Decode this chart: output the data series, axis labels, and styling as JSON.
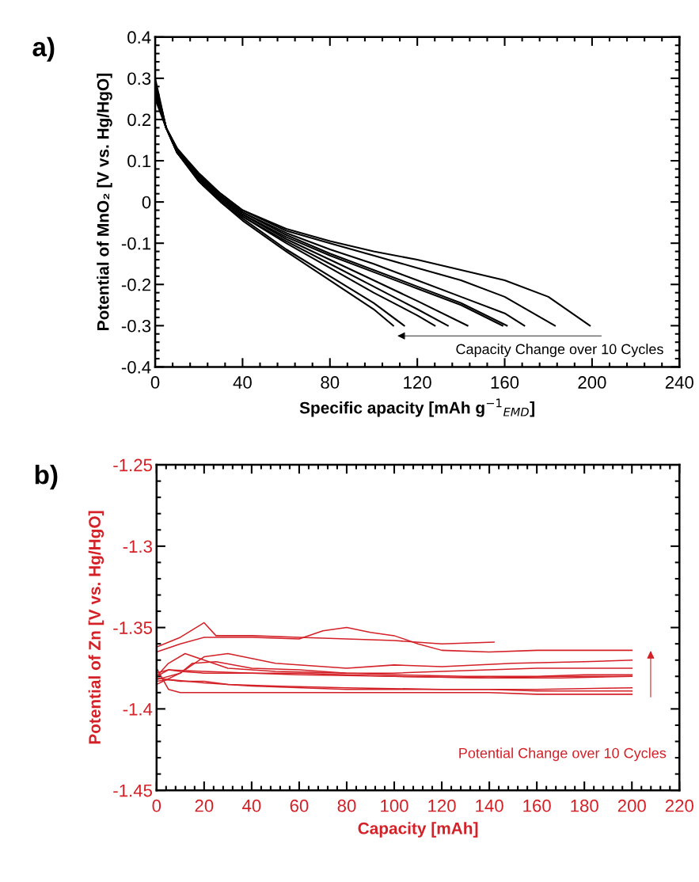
{
  "chart_data": [
    {
      "type": "line",
      "title": "a)",
      "xlabel": "Specific apacity [mAh g$^{−1}$$_{EMD}$]",
      "ylabel": "Potential of MnO₂ [V vs. Hg/HgO]",
      "xlim": [
        0,
        240
      ],
      "xticks": [
        0,
        40,
        80,
        120,
        160,
        200,
        240
      ],
      "ylim": [
        -0.4,
        0.4
      ],
      "yticks": [
        {
          "value": -0.4,
          "label": "-0.4"
        },
        {
          "value": -0.3,
          "label": "-0.3"
        },
        {
          "value": -0.2,
          "label": "-0.2"
        },
        {
          "value": -0.1,
          "label": "-0.1"
        },
        {
          "value": 0,
          "label": "0"
        },
        {
          "value": 0.1,
          "label": "0.1"
        },
        {
          "value": 0.2,
          "label": "0.2"
        },
        {
          "value": 0.3,
          "label": "0.3"
        },
        {
          "value": 0.4,
          "label": "0.4"
        }
      ],
      "grid": false,
      "legend": false,
      "marker": "none",
      "line_style": "solid",
      "annotations": [
        "Capacity Change over 10 Cycles"
      ],
      "series": [
        {
          "color": "#000000",
          "x": [
            0,
            5,
            10,
            20,
            30,
            40,
            60,
            80,
            100,
            109
          ],
          "values": [
            0.3,
            0.18,
            0.12,
            0.05,
            0.0,
            -0.045,
            -0.12,
            -0.19,
            -0.26,
            -0.3
          ]
        },
        {
          "color": "#000000",
          "x": [
            0,
            5,
            10,
            20,
            30,
            40,
            60,
            80,
            100,
            114
          ],
          "values": [
            0.29,
            0.18,
            0.12,
            0.05,
            0.0,
            -0.04,
            -0.115,
            -0.18,
            -0.245,
            -0.3
          ]
        },
        {
          "color": "#000000",
          "x": [
            0,
            5,
            10,
            20,
            30,
            40,
            60,
            80,
            100,
            120,
            128
          ],
          "values": [
            0.29,
            0.18,
            0.12,
            0.055,
            0.005,
            -0.035,
            -0.1,
            -0.16,
            -0.22,
            -0.275,
            -0.3
          ]
        },
        {
          "color": "#000000",
          "x": [
            0,
            5,
            10,
            20,
            30,
            40,
            60,
            80,
            100,
            120,
            134
          ],
          "values": [
            0.28,
            0.18,
            0.12,
            0.055,
            0.005,
            -0.035,
            -0.095,
            -0.15,
            -0.205,
            -0.26,
            -0.3
          ]
        },
        {
          "color": "#000000",
          "x": [
            0,
            5,
            10,
            20,
            30,
            40,
            60,
            80,
            100,
            120,
            143
          ],
          "values": [
            0.28,
            0.18,
            0.125,
            0.06,
            0.01,
            -0.03,
            -0.09,
            -0.14,
            -0.19,
            -0.24,
            -0.3
          ]
        },
        {
          "color": "#000000",
          "x": [
            0,
            5,
            10,
            20,
            30,
            40,
            60,
            80,
            100,
            120,
            140,
            159
          ],
          "values": [
            0.27,
            0.18,
            0.125,
            0.06,
            0.01,
            -0.03,
            -0.085,
            -0.13,
            -0.17,
            -0.21,
            -0.25,
            -0.3
          ]
        },
        {
          "color": "#000000",
          "x": [
            0,
            5,
            10,
            20,
            30,
            40,
            60,
            80,
            100,
            120,
            140,
            161
          ],
          "values": [
            0.27,
            0.18,
            0.125,
            0.06,
            0.015,
            -0.025,
            -0.08,
            -0.125,
            -0.165,
            -0.205,
            -0.245,
            -0.3
          ]
        },
        {
          "color": "#000000",
          "x": [
            0,
            5,
            10,
            20,
            30,
            40,
            60,
            80,
            100,
            120,
            140,
            160,
            169
          ],
          "values": [
            0.26,
            0.18,
            0.13,
            0.065,
            0.015,
            -0.025,
            -0.075,
            -0.115,
            -0.15,
            -0.19,
            -0.23,
            -0.27,
            -0.3
          ]
        },
        {
          "color": "#000000",
          "x": [
            0,
            5,
            10,
            20,
            30,
            40,
            60,
            80,
            100,
            120,
            140,
            160,
            183
          ],
          "values": [
            0.26,
            0.18,
            0.13,
            0.065,
            0.02,
            -0.02,
            -0.07,
            -0.1,
            -0.13,
            -0.16,
            -0.19,
            -0.23,
            -0.3
          ]
        },
        {
          "color": "#000000",
          "x": [
            0,
            5,
            10,
            20,
            30,
            40,
            60,
            80,
            100,
            120,
            140,
            160,
            180,
            199
          ],
          "values": [
            0.25,
            0.18,
            0.13,
            0.07,
            0.02,
            -0.02,
            -0.065,
            -0.095,
            -0.12,
            -0.14,
            -0.165,
            -0.19,
            -0.23,
            -0.3
          ]
        }
      ]
    },
    {
      "type": "line",
      "title": "b)",
      "xlabel": "Capacity [mAh]",
      "ylabel": "Potential of Zn [V vs. Hg/HgO]",
      "xlim": [
        0,
        220
      ],
      "xticks": [
        0,
        20,
        40,
        60,
        80,
        100,
        120,
        140,
        160,
        180,
        200,
        220
      ],
      "ylim": [
        -1.45,
        -1.25
      ],
      "yticks": [
        {
          "value": -1.45,
          "label": "-1.45"
        },
        {
          "value": -1.4,
          "label": "-1.4"
        },
        {
          "value": -1.35,
          "label": "-1.35"
        },
        {
          "value": -1.3,
          "label": "-1.3"
        },
        {
          "value": -1.25,
          "label": "-1.25"
        }
      ],
      "grid": false,
      "legend": false,
      "marker": "none",
      "line_style": "solid",
      "annotations": [
        "Potential Change over 10 Cycles"
      ],
      "series": [
        {
          "color": "#d42027",
          "x": [
            0,
            10,
            20,
            25,
            40,
            60,
            80,
            100,
            120,
            142
          ],
          "values": [
            -1.362,
            -1.356,
            -1.347,
            -1.355,
            -1.355,
            -1.356,
            -1.357,
            -1.358,
            -1.36,
            -1.359
          ]
        },
        {
          "color": "#d42027",
          "x": [
            0,
            10,
            20,
            40,
            60,
            70,
            80,
            90,
            100,
            110,
            120,
            140,
            160,
            180,
            200
          ],
          "values": [
            -1.365,
            -1.36,
            -1.356,
            -1.356,
            -1.357,
            -1.352,
            -1.35,
            -1.353,
            -1.355,
            -1.36,
            -1.364,
            -1.365,
            -1.364,
            -1.364,
            -1.364
          ]
        },
        {
          "color": "#d42027",
          "x": [
            0,
            5,
            12,
            20,
            30,
            50,
            80,
            100,
            120,
            140,
            160,
            180,
            200
          ],
          "values": [
            -1.38,
            -1.372,
            -1.366,
            -1.37,
            -1.375,
            -1.377,
            -1.378,
            -1.378,
            -1.377,
            -1.376,
            -1.375,
            -1.375,
            -1.375
          ]
        },
        {
          "color": "#d42027",
          "x": [
            0,
            10,
            20,
            30,
            50,
            80,
            100,
            120,
            150,
            180,
            200
          ],
          "values": [
            -1.385,
            -1.378,
            -1.368,
            -1.366,
            -1.372,
            -1.375,
            -1.373,
            -1.374,
            -1.372,
            -1.371,
            -1.37
          ]
        },
        {
          "color": "#d42027",
          "x": [
            0,
            10,
            15,
            25,
            40,
            60,
            80,
            100,
            130,
            160,
            180,
            200
          ],
          "values": [
            -1.382,
            -1.378,
            -1.372,
            -1.371,
            -1.375,
            -1.376,
            -1.378,
            -1.379,
            -1.38,
            -1.38,
            -1.379,
            -1.379
          ]
        },
        {
          "color": "#d42027",
          "x": [
            0,
            5,
            10,
            20,
            40,
            60,
            80,
            100,
            140,
            170,
            200
          ],
          "values": [
            -1.38,
            -1.376,
            -1.377,
            -1.378,
            -1.378,
            -1.378,
            -1.379,
            -1.38,
            -1.381,
            -1.381,
            -1.38
          ]
        },
        {
          "color": "#d42027",
          "x": [
            0,
            5,
            20,
            40,
            60,
            100,
            140,
            170,
            200
          ],
          "values": [
            -1.378,
            -1.376,
            -1.377,
            -1.378,
            -1.379,
            -1.38,
            -1.381,
            -1.38,
            -1.38
          ]
        },
        {
          "color": "#d42027",
          "x": [
            0,
            10,
            20,
            30,
            50,
            80,
            120,
            160,
            200
          ],
          "values": [
            -1.381,
            -1.383,
            -1.383,
            -1.385,
            -1.386,
            -1.387,
            -1.388,
            -1.388,
            -1.387
          ]
        },
        {
          "color": "#d42027",
          "x": [
            0,
            5,
            20,
            40,
            80,
            120,
            140,
            160,
            200
          ],
          "values": [
            -1.383,
            -1.382,
            -1.384,
            -1.386,
            -1.388,
            -1.388,
            -1.388,
            -1.389,
            -1.389
          ]
        },
        {
          "color": "#d42027",
          "x": [
            0,
            5,
            10,
            30,
            60,
            100,
            140,
            160,
            200
          ],
          "values": [
            -1.375,
            -1.388,
            -1.39,
            -1.39,
            -1.39,
            -1.39,
            -1.39,
            -1.391,
            -1.391
          ]
        }
      ]
    }
  ]
}
